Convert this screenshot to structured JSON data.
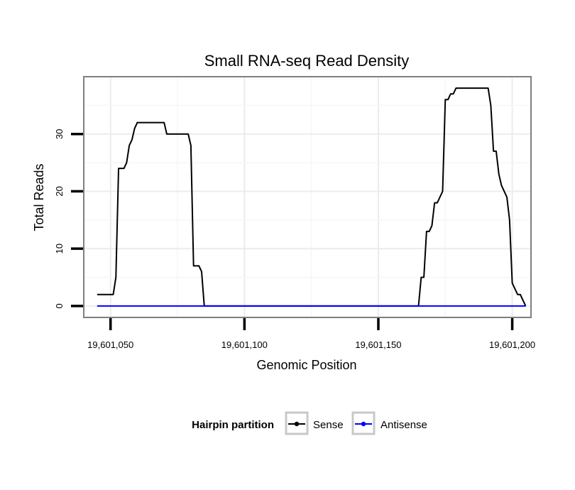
{
  "chart_data": {
    "type": "line",
    "title": "Small RNA-seq Read Density",
    "xlabel": "Genomic Position",
    "ylabel": "Total Reads",
    "xlim": [
      19601040,
      19601207
    ],
    "ylim": [
      -2,
      40
    ],
    "x_ticks": [
      19601050,
      19601100,
      19601150,
      19601200
    ],
    "x_tick_labels": [
      "19,601,050",
      "19,601,100",
      "19,601,150",
      "19,601,200"
    ],
    "y_ticks": [
      0,
      10,
      20,
      30
    ],
    "y_tick_labels": [
      "0",
      "10",
      "20",
      "30"
    ],
    "grid": true,
    "legend": {
      "title": "Hairpin partition",
      "position": "bottom",
      "entries": [
        {
          "label": "Sense",
          "color": "#000000"
        },
        {
          "label": "Antisense",
          "color": "#0000ff"
        }
      ]
    },
    "series": [
      {
        "name": "Sense",
        "color": "#000000",
        "points": [
          [
            19601045,
            2
          ],
          [
            19601046,
            2
          ],
          [
            19601047,
            2
          ],
          [
            19601048,
            2
          ],
          [
            19601049,
            2
          ],
          [
            19601050,
            2
          ],
          [
            19601051,
            2
          ],
          [
            19601052,
            5
          ],
          [
            19601053,
            24
          ],
          [
            19601054,
            24
          ],
          [
            19601055,
            24
          ],
          [
            19601056,
            25
          ],
          [
            19601057,
            28
          ],
          [
            19601058,
            29
          ],
          [
            19601059,
            31
          ],
          [
            19601060,
            32
          ],
          [
            19601061,
            32
          ],
          [
            19601062,
            32
          ],
          [
            19601063,
            32
          ],
          [
            19601064,
            32
          ],
          [
            19601065,
            32
          ],
          [
            19601066,
            32
          ],
          [
            19601067,
            32
          ],
          [
            19601068,
            32
          ],
          [
            19601069,
            32
          ],
          [
            19601070,
            32
          ],
          [
            19601071,
            30
          ],
          [
            19601072,
            30
          ],
          [
            19601073,
            30
          ],
          [
            19601074,
            30
          ],
          [
            19601075,
            30
          ],
          [
            19601076,
            30
          ],
          [
            19601077,
            30
          ],
          [
            19601078,
            30
          ],
          [
            19601079,
            30
          ],
          [
            19601080,
            28
          ],
          [
            19601081,
            7
          ],
          [
            19601082,
            7
          ],
          [
            19601083,
            7
          ],
          [
            19601084,
            6
          ],
          [
            19601085,
            0
          ],
          [
            19601090,
            0
          ],
          [
            19601100,
            0
          ],
          [
            19601110,
            0
          ],
          [
            19601120,
            0
          ],
          [
            19601130,
            0
          ],
          [
            19601140,
            0
          ],
          [
            19601150,
            0
          ],
          [
            19601160,
            0
          ],
          [
            19601163,
            0
          ],
          [
            19601165,
            0
          ],
          [
            19601166,
            5
          ],
          [
            19601167,
            5
          ],
          [
            19601168,
            13
          ],
          [
            19601169,
            13
          ],
          [
            19601170,
            14
          ],
          [
            19601171,
            18
          ],
          [
            19601172,
            18
          ],
          [
            19601173,
            19
          ],
          [
            19601174,
            20
          ],
          [
            19601175,
            36
          ],
          [
            19601176,
            36
          ],
          [
            19601177,
            37
          ],
          [
            19601178,
            37
          ],
          [
            19601179,
            38
          ],
          [
            19601180,
            38
          ],
          [
            19601181,
            38
          ],
          [
            19601182,
            38
          ],
          [
            19601183,
            38
          ],
          [
            19601184,
            38
          ],
          [
            19601185,
            38
          ],
          [
            19601186,
            38
          ],
          [
            19601187,
            38
          ],
          [
            19601188,
            38
          ],
          [
            19601189,
            38
          ],
          [
            19601190,
            38
          ],
          [
            19601191,
            38
          ],
          [
            19601192,
            35
          ],
          [
            19601193,
            27
          ],
          [
            19601194,
            27
          ],
          [
            19601195,
            23
          ],
          [
            19601196,
            21
          ],
          [
            19601197,
            20
          ],
          [
            19601198,
            19
          ],
          [
            19601199,
            15
          ],
          [
            19601200,
            4
          ],
          [
            19601201,
            3
          ],
          [
            19601202,
            2
          ],
          [
            19601203,
            2
          ],
          [
            19601204,
            1
          ],
          [
            19601205,
            0
          ]
        ]
      },
      {
        "name": "Antisense",
        "color": "#0000ff",
        "points": [
          [
            19601045,
            0
          ],
          [
            19601205,
            0
          ]
        ]
      }
    ]
  }
}
